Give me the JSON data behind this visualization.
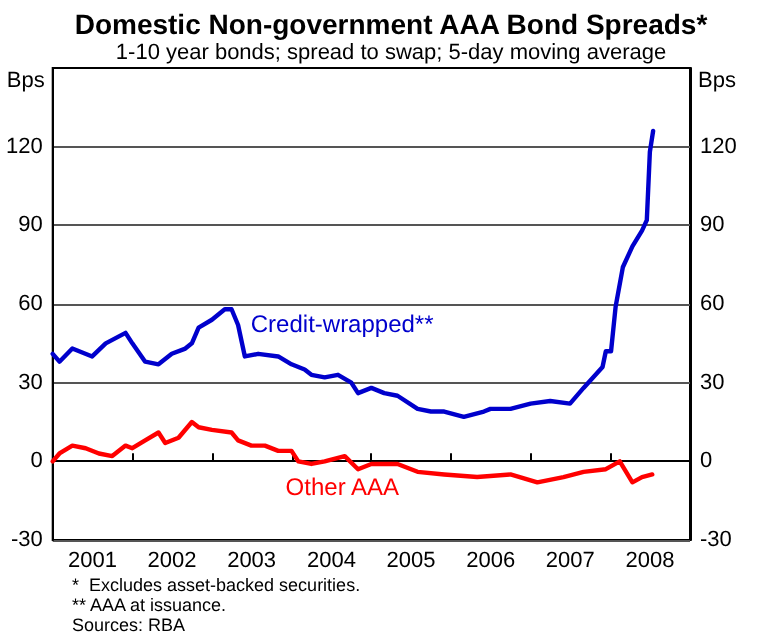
{
  "chart_data": {
    "type": "line",
    "title": "Domestic Non-government AAA Bond Spreads*",
    "subtitle": "1-10 year bonds; spread to swap; 5-day moving average",
    "ylabel": "Bps",
    "y2label": "Bps",
    "xlim": [
      "2001-01-01",
      "2009-01-01"
    ],
    "xticks": [
      {
        "value": "2002-01-01",
        "label": null
      },
      {
        "value": "2003-01-01",
        "label": null
      },
      {
        "value": "2004-01-01",
        "label": null
      },
      {
        "value": "2005-01-01",
        "label": null
      },
      {
        "value": "2006-01-01",
        "label": null
      },
      {
        "value": "2007-01-01",
        "label": null
      },
      {
        "value": "2008-01-01",
        "label": null
      },
      {
        "value": "2001-07-02",
        "label": "2001"
      },
      {
        "value": "2002-07-02",
        "label": "2002"
      },
      {
        "value": "2003-07-02",
        "label": "2003"
      },
      {
        "value": "2004-07-02",
        "label": "2004"
      },
      {
        "value": "2005-07-02",
        "label": "2005"
      },
      {
        "value": "2006-07-02",
        "label": "2006"
      },
      {
        "value": "2007-07-02",
        "label": "2007"
      },
      {
        "value": "2008-07-02",
        "label": "2008"
      }
    ],
    "ylim": [
      -30,
      150
    ],
    "yticks": [
      -30,
      0,
      30,
      60,
      90,
      120
    ],
    "y2lim": [
      -30,
      150
    ],
    "y2ticks": [
      -30,
      0,
      30,
      60,
      90,
      120
    ],
    "grid": "y",
    "legend": false,
    "marker": "none",
    "line_style": "solid",
    "series": [
      {
        "name": "Credit-wrapped**",
        "color": "#0000cc",
        "x": [
          "2001-01",
          "2001-02",
          "2001-04",
          "2001-07",
          "2001-09",
          "2001-12",
          "2002-01",
          "2002-03",
          "2002-05",
          "2002-07",
          "2002-09",
          "2002-10",
          "2002-11",
          "2003-01",
          "2003-03",
          "2003-04",
          "2003-05",
          "2003-06",
          "2003-08",
          "2003-11",
          "2004-01",
          "2004-03",
          "2004-04",
          "2004-06",
          "2004-08",
          "2004-10",
          "2004-11",
          "2005-01",
          "2005-03",
          "2005-05",
          "2005-08",
          "2005-10",
          "2005-12",
          "2006-03",
          "2006-06",
          "2006-07",
          "2006-10",
          "2007-01",
          "2007-04",
          "2007-07",
          "2007-09",
          "2007-11-27",
          "2007-12-12",
          "2008-01-05",
          "2008-01-26",
          "2008-02-28",
          "2008-04-12",
          "2008-05-26",
          "2008-06-17",
          "2008-07-01",
          "2008-07-16"
        ],
        "values": [
          41,
          38,
          43,
          40,
          45,
          49,
          45,
          38,
          37,
          41,
          43,
          45,
          51,
          54,
          58,
          58,
          52,
          40,
          41,
          40,
          37,
          35,
          33,
          32,
          33,
          30,
          26,
          28,
          26,
          25,
          20,
          19,
          19,
          17,
          19,
          20,
          20,
          22,
          23,
          22,
          28,
          36,
          42,
          42,
          59,
          74,
          82,
          88,
          92,
          118,
          126
        ]
      },
      {
        "name": "Other AAA",
        "color": "#ff0000",
        "x": [
          "2001-01",
          "2001-02",
          "2001-04",
          "2001-06",
          "2001-08",
          "2001-10",
          "2001-12",
          "2002-01",
          "2002-03",
          "2002-05",
          "2002-06",
          "2002-08",
          "2002-10",
          "2002-11",
          "2003-01",
          "2003-04",
          "2003-05",
          "2003-07",
          "2003-09",
          "2003-11",
          "2004-01",
          "2004-02",
          "2004-04",
          "2004-06",
          "2004-09",
          "2004-11",
          "2005-01",
          "2005-05",
          "2005-08",
          "2005-12",
          "2006-05",
          "2006-10",
          "2007-02",
          "2007-06",
          "2007-09",
          "2007-12-12",
          "2008-02-14",
          "2008-04-12",
          "2008-05-26",
          "2008-07-12"
        ],
        "values": [
          0,
          3,
          6,
          5,
          3,
          2,
          6,
          5,
          8,
          11,
          7,
          9,
          15,
          13,
          12,
          11,
          8,
          6,
          6,
          4,
          4,
          0,
          -1,
          0,
          2,
          -3,
          -1,
          -1,
          -4,
          -5,
          -6,
          -5,
          -8,
          -6,
          -4,
          -3,
          0,
          -8,
          -6,
          -5
        ]
      }
    ],
    "annotations": [
      "*  Excludes asset-backed securities.",
      "** AAA at issuance.",
      "Sources: RBA"
    ]
  }
}
